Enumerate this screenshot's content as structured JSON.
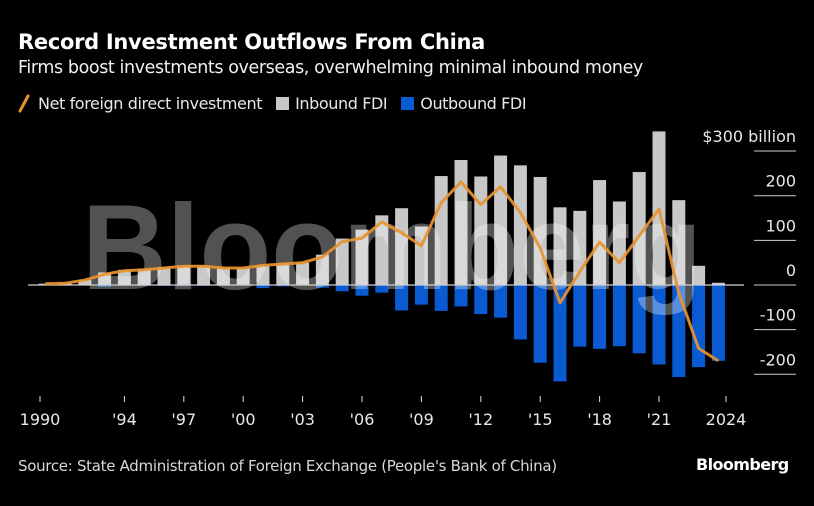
{
  "header": {
    "title": "Record Investment Outflows From China",
    "subtitle": "Firms boost investments overseas, overwhelming minimal inbound money"
  },
  "legend": [
    {
      "name": "Net foreign direct investment",
      "type": "line",
      "color": "#e8922e"
    },
    {
      "name": "Inbound FDI",
      "type": "bar",
      "color": "#c8c8c8"
    },
    {
      "name": "Outbound FDI",
      "type": "bar",
      "color": "#0a5ad2"
    }
  ],
  "watermark": "Bloomberg",
  "footer": {
    "source": "Source: State Administration of Foreign Exchange (People's Bank of China)",
    "logo": "Bloomberg"
  },
  "chart_data": {
    "type": "bar",
    "title": "Record Investment Outflows From China",
    "subtitle": "Firms boost investments overseas, overwhelming minimal inbound money",
    "xlabel": "",
    "ylabel": "$ billion",
    "y_unit_label": "$300 billion",
    "ylim": [
      -250,
      300
    ],
    "yticks": [
      300,
      200,
      100,
      0,
      -100,
      -200
    ],
    "ytick_labels": [
      "$300 billion",
      "200",
      "100",
      "0",
      "-100",
      "-200"
    ],
    "y_axis_position": "right",
    "grid": true,
    "legend_position": "top-left",
    "x": [
      1990,
      1991,
      1992,
      1993,
      1994,
      1995,
      1996,
      1997,
      1998,
      1999,
      2000,
      2001,
      2002,
      2003,
      2004,
      2005,
      2006,
      2007,
      2008,
      2009,
      2010,
      2011,
      2012,
      2013,
      2014,
      2015,
      2016,
      2017,
      2018,
      2019,
      2020,
      2021,
      2022,
      2023,
      2024
    ],
    "xticks": [
      1990,
      1994,
      1997,
      2000,
      2003,
      2006,
      2009,
      2012,
      2015,
      2018,
      2021,
      2024
    ],
    "xtick_labels": [
      "1990",
      "'94",
      "'97",
      "'00",
      "'03",
      "'06",
      "'09",
      "'12",
      "'15",
      "'18",
      "'21",
      "2024"
    ],
    "series": [
      {
        "name": "Inbound FDI",
        "type": "bar",
        "color": "#c8c8c8",
        "values": [
          3,
          4,
          11,
          28,
          34,
          36,
          40,
          44,
          44,
          39,
          38,
          44,
          49,
          50,
          68,
          104,
          124,
          156,
          172,
          131,
          244,
          280,
          243,
          290,
          268,
          242,
          174,
          166,
          235,
          187,
          253,
          344,
          190,
          43,
          5
        ]
      },
      {
        "name": "Outbound FDI",
        "type": "bar",
        "color": "#0a5ad2",
        "values": [
          -1,
          -1,
          -1,
          -4,
          -2,
          -2,
          -2,
          -2,
          -2,
          -2,
          -1,
          -7,
          -3,
          -1,
          -6,
          -14,
          -24,
          -17,
          -57,
          -44,
          -58,
          -48,
          -65,
          -73,
          -122,
          -174,
          -216,
          -138,
          -143,
          -137,
          -153,
          -178,
          -206,
          -184,
          -170
        ]
      },
      {
        "name": "Net foreign direct investment",
        "type": "line",
        "color": "#e8922e",
        "values": [
          3,
          4,
          11,
          24,
          32,
          34,
          38,
          42,
          42,
          38,
          38,
          44,
          47,
          50,
          63,
          97,
          105,
          141,
          117,
          88,
          184,
          231,
          180,
          220,
          162,
          83,
          -40,
          30,
          96,
          50,
          110,
          170,
          -18,
          -142,
          -170
        ]
      }
    ]
  }
}
